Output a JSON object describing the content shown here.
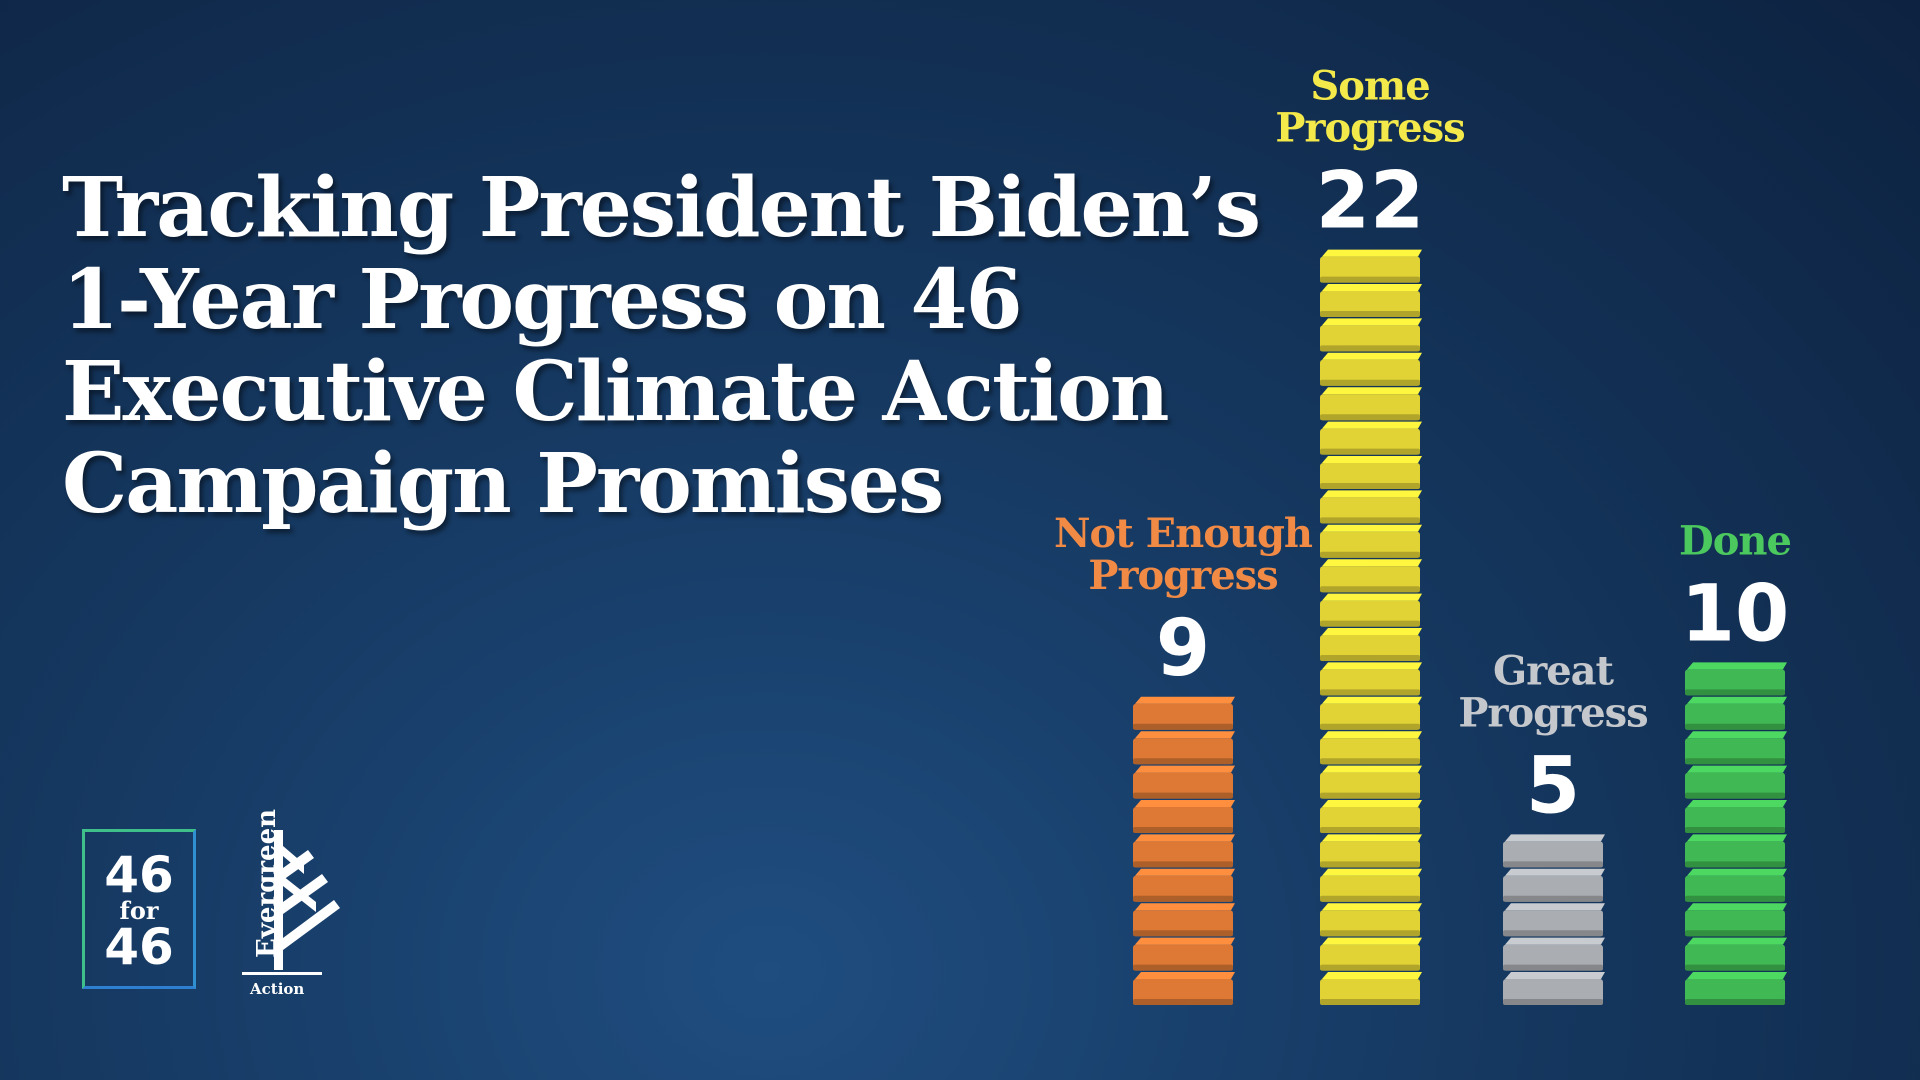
{
  "title_lines": [
    "Tracking President Biden’s",
    "1-Year Progress on 46",
    "Executive Climate Action",
    "Campaign Promises"
  ],
  "logos": {
    "fortysix_top": "46",
    "fortysix_for": "for",
    "fortysix_bottom": "46",
    "evergreen_word": "Evergreen",
    "action_word": "Action"
  },
  "chart_data": {
    "type": "bar",
    "title": "Tracking President Biden’s 1-Year Progress on 46 Executive Climate Action Campaign Promises",
    "categories": [
      "Not Enough Progress",
      "Some Progress",
      "Great Progress",
      "Done"
    ],
    "category_label_lines": [
      [
        "Not Enough",
        "Progress"
      ],
      [
        "Some",
        "Progress"
      ],
      [
        "Great",
        "Progress"
      ],
      [
        "Done"
      ]
    ],
    "values": [
      9,
      22,
      5,
      10
    ],
    "colors": [
      "#f0843a",
      "#f5e53a",
      "#b9bcc0",
      "#46c85a"
    ],
    "label_colors": [
      "#f08a45",
      "#f4e94a",
      "#c4c7cb",
      "#4cc95e"
    ],
    "xlabel": "",
    "ylabel": "",
    "grid": false,
    "legend": "none"
  }
}
